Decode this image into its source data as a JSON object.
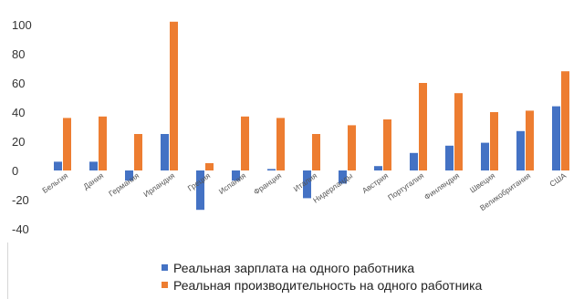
{
  "chart_data": {
    "type": "bar",
    "categories": [
      "Бельгия",
      "Дания",
      "Германия",
      "Ирландия",
      "Греция",
      "Испания",
      "Франция",
      "Италия",
      "Нидерланды",
      "Австрия",
      "Португалия",
      "Финляндия",
      "Швеция",
      "Великобритания",
      "США"
    ],
    "series": [
      {
        "name": "Реальная зарплата на одного работника",
        "color": "#4472C4",
        "values": [
          6,
          6,
          -7,
          25,
          -27,
          -7,
          1,
          -19,
          -9,
          3,
          12,
          17,
          19,
          27,
          44
        ]
      },
      {
        "name": "Реальная  производительность на одного работника",
        "color": "#ED7D31",
        "values": [
          36,
          37,
          25,
          102,
          5,
          37,
          36,
          25,
          31,
          35,
          60,
          53,
          40,
          41,
          68
        ]
      }
    ],
    "yticks": [
      100,
      80,
      60,
      40,
      20,
      0,
      -20,
      -40
    ],
    "ylim": [
      -40,
      105
    ],
    "xlabel": "",
    "ylabel": "",
    "grid": false,
    "legend_position": "bottom"
  }
}
